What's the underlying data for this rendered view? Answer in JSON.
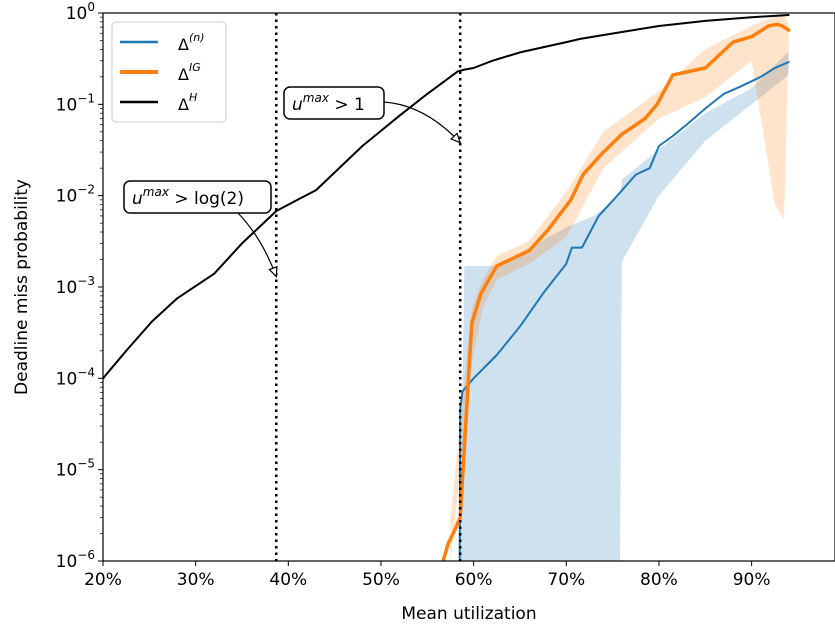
{
  "chart_data": {
    "type": "line",
    "xlabel": "Mean utilization",
    "ylabel": "Deadline miss probability",
    "xlim": [
      0.2,
      0.99
    ],
    "ylim": [
      1e-06,
      1
    ],
    "yscale": "log",
    "grid": false,
    "legend_placement": "top-left",
    "xticks": [
      0.2,
      0.3,
      0.4,
      0.5,
      0.6,
      0.7,
      0.8,
      0.9
    ],
    "xtick_labels": [
      "20%",
      "30%",
      "40%",
      "50%",
      "60%",
      "70%",
      "80%",
      "90%"
    ],
    "yticks": [
      {
        "value": 1e-06,
        "base": "10",
        "exp": "−6"
      },
      {
        "value": 1e-05,
        "base": "10",
        "exp": "−5"
      },
      {
        "value": 0.0001,
        "base": "10",
        "exp": "−4"
      },
      {
        "value": 0.001,
        "base": "10",
        "exp": "−3"
      },
      {
        "value": 0.01,
        "base": "10",
        "exp": "−2"
      },
      {
        "value": 0.1,
        "base": "10",
        "exp": "−1"
      },
      {
        "value": 1,
        "base": "10",
        "exp": "0"
      }
    ],
    "vlines": [
      0.387,
      0.5855
    ],
    "series": [
      {
        "name": "Δ(n)",
        "label_base": "Δ",
        "label_sup": "(n)",
        "color": "#1f77b4",
        "width": 2,
        "x": [
          0.585,
          0.5855,
          0.588,
          0.6,
          0.625,
          0.65,
          0.675,
          0.7,
          0.706,
          0.717,
          0.735,
          0.755,
          0.775,
          0.79,
          0.8,
          0.815,
          0.83,
          0.85,
          0.87,
          0.89,
          0.91,
          0.925,
          0.94
        ],
        "y": [
          1e-06,
          4.6e-05,
          7.2e-05,
          0.0001,
          0.00018,
          0.00037,
          0.00085,
          0.0018,
          0.0027,
          0.0027,
          0.006,
          0.01,
          0.017,
          0.02,
          0.035,
          0.045,
          0.06,
          0.09,
          0.13,
          0.16,
          0.2,
          0.25,
          0.29
        ],
        "band_x": [
          0.585,
          0.59,
          0.625,
          0.66,
          0.7,
          0.73,
          0.758,
          0.76,
          0.8,
          0.85,
          0.9,
          0.94
        ],
        "band_lo": [
          1e-06,
          1e-06,
          1e-06,
          1e-06,
          1e-06,
          1e-06,
          1e-06,
          0.0019,
          0.01,
          0.04,
          0.1,
          0.21
        ],
        "band_hi": [
          1e-06,
          0.0017,
          0.0017,
          0.0027,
          0.0045,
          0.006,
          0.01,
          0.015,
          0.032,
          0.08,
          0.15,
          0.38
        ]
      },
      {
        "name": "ΔIG",
        "label_base": "Δ",
        "label_sup": "IG",
        "color": "#ff7f0e",
        "width": 3.5,
        "x": [
          0.567,
          0.573,
          0.578,
          0.5855,
          0.598,
          0.608,
          0.625,
          0.66,
          0.68,
          0.705,
          0.718,
          0.74,
          0.76,
          0.785,
          0.798,
          0.815,
          0.85,
          0.88,
          0.9,
          0.918,
          0.928,
          0.933,
          0.94
        ],
        "y": [
          1e-06,
          1.6e-06,
          2e-06,
          3e-06,
          0.0004,
          0.00085,
          0.0017,
          0.0025,
          0.0042,
          0.009,
          0.017,
          0.03,
          0.047,
          0.07,
          0.1,
          0.21,
          0.25,
          0.48,
          0.55,
          0.72,
          0.75,
          0.72,
          0.65
        ],
        "band_x": [
          0.575,
          0.598,
          0.61,
          0.625,
          0.66,
          0.7,
          0.74,
          0.8,
          0.85,
          0.9,
          0.925,
          0.935,
          0.94
        ],
        "band_lo": [
          1e-06,
          0.00015,
          0.0006,
          0.0012,
          0.0018,
          0.0035,
          0.02,
          0.07,
          0.12,
          0.3,
          0.008,
          0.0055,
          0.5
        ],
        "band_hi": [
          3e-06,
          0.0006,
          0.0012,
          0.0022,
          0.0032,
          0.011,
          0.05,
          0.14,
          0.4,
          0.72,
          0.92,
          0.95,
          0.75
        ]
      },
      {
        "name": "ΔH",
        "label_base": "Δ",
        "label_sup": "H",
        "color": "#000000",
        "width": 2,
        "x": [
          0.2,
          0.225,
          0.253,
          0.28,
          0.32,
          0.35,
          0.387,
          0.41,
          0.43,
          0.48,
          0.52,
          0.55,
          0.583,
          0.59,
          0.6,
          0.62,
          0.65,
          0.7,
          0.715,
          0.76,
          0.8,
          0.85,
          0.9,
          0.94
        ],
        "y": [
          0.0001,
          0.0002,
          0.00042,
          0.00075,
          0.0014,
          0.003,
          0.0068,
          0.009,
          0.0115,
          0.035,
          0.075,
          0.13,
          0.23,
          0.24,
          0.25,
          0.3,
          0.37,
          0.48,
          0.52,
          0.62,
          0.72,
          0.82,
          0.9,
          0.95
        ]
      }
    ],
    "annotations": [
      {
        "base": "u",
        "sup": "max",
        "rest": " > log(2)",
        "target_x": 0.387,
        "target_y": 0.0013
      },
      {
        "base": "u",
        "sup": "max",
        "rest": " > 1",
        "target_x": 0.5855,
        "target_y": 0.038
      }
    ]
  }
}
